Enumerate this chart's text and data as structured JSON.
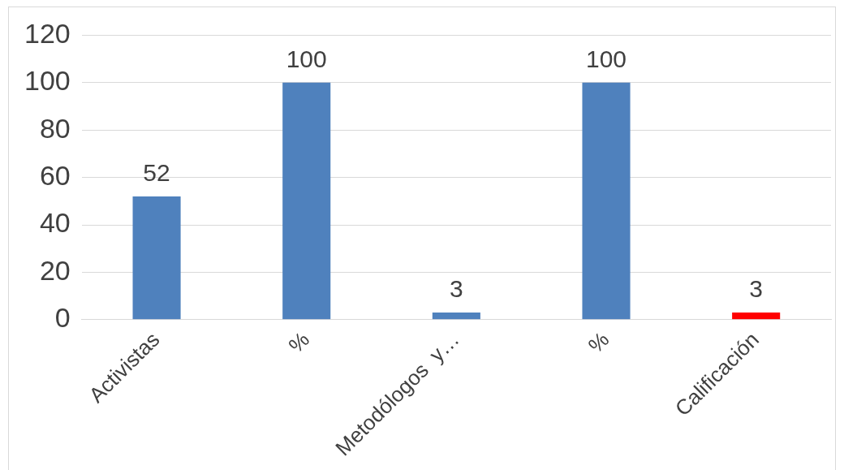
{
  "chart_data": {
    "type": "bar",
    "categories": [
      "Activistas",
      "%",
      "Metodólogos  y…",
      "%",
      "Calificación"
    ],
    "values": [
      52,
      100,
      3,
      100,
      3
    ],
    "colors": [
      "#4f81bd",
      "#4f81bd",
      "#4f81bd",
      "#4f81bd",
      "#ff0000"
    ],
    "ylim": [
      0,
      120
    ],
    "yticks": [
      0,
      20,
      40,
      60,
      80,
      100,
      120
    ],
    "grid": "y",
    "legend": false,
    "data_labels": true
  }
}
